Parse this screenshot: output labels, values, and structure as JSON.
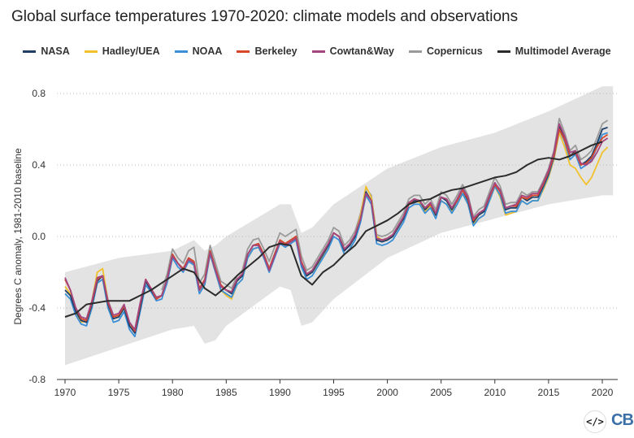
{
  "chart_data": {
    "type": "line",
    "title": "Global surface temperatures 1970-2020: climate models and observations",
    "ylabel": "Degrees C anomaly, 1981-2010 baseline",
    "xlim": [
      1969.5,
      2021.5
    ],
    "ylim": [
      -0.8,
      0.85
    ],
    "xticks": [
      "1970",
      "1975",
      "1980",
      "1985",
      "1990",
      "1995",
      "2000",
      "2005",
      "2010",
      "2015",
      "2020"
    ],
    "yticks": [
      "0.8",
      "0.4",
      "0.0",
      "-0.4",
      "-0.8"
    ],
    "grid": "horizontal-dotted",
    "legend": "top",
    "obs_x_start": 1970,
    "obs_x_step": 0.5,
    "series": [
      {
        "name": "NASA",
        "color": "#1f3f66",
        "values": [
          -0.3,
          -0.33,
          -0.42,
          -0.47,
          -0.48,
          -0.38,
          -0.25,
          -0.22,
          -0.38,
          -0.46,
          -0.45,
          -0.4,
          -0.5,
          -0.54,
          -0.4,
          -0.25,
          -0.3,
          -0.35,
          -0.33,
          -0.24,
          -0.1,
          -0.15,
          -0.18,
          -0.12,
          -0.14,
          -0.3,
          -0.25,
          -0.08,
          -0.18,
          -0.28,
          -0.3,
          -0.32,
          -0.25,
          -0.22,
          -0.1,
          -0.05,
          -0.04,
          -0.1,
          -0.18,
          -0.1,
          -0.02,
          -0.04,
          -0.02,
          0.0,
          -0.15,
          -0.22,
          -0.2,
          -0.15,
          -0.1,
          -0.05,
          0.02,
          0.0,
          -0.08,
          -0.05,
          0.0,
          0.1,
          0.25,
          0.2,
          -0.02,
          -0.03,
          -0.02,
          0.0,
          0.05,
          0.1,
          0.18,
          0.2,
          0.2,
          0.15,
          0.18,
          0.12,
          0.22,
          0.2,
          0.15,
          0.2,
          0.26,
          0.2,
          0.08,
          0.12,
          0.14,
          0.22,
          0.3,
          0.25,
          0.15,
          0.16,
          0.16,
          0.22,
          0.2,
          0.22,
          0.22,
          0.28,
          0.35,
          0.45,
          0.62,
          0.55,
          0.45,
          0.48,
          0.4,
          0.42,
          0.45,
          0.52,
          0.6,
          0.61
        ]
      },
      {
        "name": "Hadley/UEA",
        "color": "#f2c12e",
        "values": [
          -0.28,
          -0.32,
          -0.42,
          -0.48,
          -0.47,
          -0.36,
          -0.2,
          -0.18,
          -0.36,
          -0.45,
          -0.44,
          -0.4,
          -0.5,
          -0.52,
          -0.39,
          -0.24,
          -0.29,
          -0.34,
          -0.33,
          -0.24,
          -0.11,
          -0.15,
          -0.18,
          -0.13,
          -0.16,
          -0.3,
          -0.27,
          -0.1,
          -0.2,
          -0.3,
          -0.33,
          -0.35,
          -0.27,
          -0.24,
          -0.12,
          -0.07,
          -0.06,
          -0.12,
          -0.19,
          -0.11,
          -0.03,
          -0.05,
          -0.03,
          -0.01,
          -0.16,
          -0.22,
          -0.2,
          -0.16,
          -0.11,
          -0.05,
          0.02,
          0.0,
          -0.07,
          -0.05,
          0.0,
          0.12,
          0.28,
          0.22,
          0.0,
          -0.02,
          -0.02,
          0.0,
          0.05,
          0.1,
          0.18,
          0.2,
          0.19,
          0.14,
          0.17,
          0.11,
          0.2,
          0.18,
          0.14,
          0.18,
          0.24,
          0.18,
          0.07,
          0.1,
          0.12,
          0.2,
          0.28,
          0.22,
          0.12,
          0.13,
          0.14,
          0.2,
          0.18,
          0.2,
          0.2,
          0.26,
          0.33,
          0.43,
          0.58,
          0.5,
          0.4,
          0.38,
          0.33,
          0.29,
          0.33,
          0.4,
          0.47,
          0.5
        ]
      },
      {
        "name": "NOAA",
        "color": "#3a8fd6",
        "values": [
          -0.32,
          -0.35,
          -0.44,
          -0.49,
          -0.5,
          -0.4,
          -0.26,
          -0.24,
          -0.4,
          -0.48,
          -0.47,
          -0.42,
          -0.52,
          -0.56,
          -0.42,
          -0.27,
          -0.31,
          -0.36,
          -0.35,
          -0.26,
          -0.12,
          -0.17,
          -0.2,
          -0.14,
          -0.16,
          -0.32,
          -0.27,
          -0.1,
          -0.2,
          -0.3,
          -0.32,
          -0.34,
          -0.27,
          -0.24,
          -0.12,
          -0.07,
          -0.06,
          -0.12,
          -0.2,
          -0.12,
          -0.04,
          -0.06,
          -0.04,
          -0.02,
          -0.17,
          -0.24,
          -0.22,
          -0.17,
          -0.12,
          -0.07,
          0.0,
          -0.02,
          -0.1,
          -0.07,
          -0.02,
          0.08,
          0.23,
          0.18,
          -0.04,
          -0.05,
          -0.04,
          -0.02,
          0.03,
          0.08,
          0.16,
          0.18,
          0.18,
          0.13,
          0.16,
          0.1,
          0.2,
          0.18,
          0.13,
          0.18,
          0.24,
          0.18,
          0.06,
          0.1,
          0.12,
          0.2,
          0.28,
          0.23,
          0.13,
          0.14,
          0.14,
          0.2,
          0.18,
          0.2,
          0.2,
          0.27,
          0.34,
          0.44,
          0.6,
          0.53,
          0.43,
          0.46,
          0.38,
          0.4,
          0.43,
          0.5,
          0.57,
          0.58
        ]
      },
      {
        "name": "Berkeley",
        "color": "#d9472b",
        "values": [
          -0.24,
          -0.3,
          -0.4,
          -0.46,
          -0.47,
          -0.37,
          -0.24,
          -0.22,
          -0.37,
          -0.45,
          -0.44,
          -0.39,
          -0.48,
          -0.53,
          -0.38,
          -0.24,
          -0.29,
          -0.35,
          -0.33,
          -0.24,
          -0.1,
          -0.15,
          -0.18,
          -0.12,
          -0.14,
          -0.29,
          -0.24,
          -0.08,
          -0.18,
          -0.27,
          -0.3,
          -0.31,
          -0.24,
          -0.21,
          -0.1,
          -0.05,
          -0.04,
          -0.1,
          -0.18,
          -0.1,
          -0.02,
          -0.04,
          -0.02,
          0.0,
          -0.14,
          -0.21,
          -0.19,
          -0.14,
          -0.09,
          -0.04,
          0.02,
          0.0,
          -0.07,
          -0.04,
          0.01,
          0.1,
          0.24,
          0.2,
          -0.01,
          -0.02,
          -0.01,
          0.01,
          0.06,
          0.11,
          0.18,
          0.21,
          0.2,
          0.16,
          0.18,
          0.13,
          0.22,
          0.21,
          0.16,
          0.2,
          0.26,
          0.21,
          0.09,
          0.13,
          0.15,
          0.22,
          0.29,
          0.25,
          0.16,
          0.17,
          0.17,
          0.22,
          0.21,
          0.23,
          0.23,
          0.29,
          0.36,
          0.45,
          0.6,
          0.54,
          0.45,
          0.47,
          0.4,
          0.41,
          0.44,
          0.5,
          0.55,
          0.57
        ]
      },
      {
        "name": "Cowtan&Way",
        "color": "#a3457e",
        "values": [
          -0.23,
          -0.3,
          -0.4,
          -0.45,
          -0.46,
          -0.36,
          -0.23,
          -0.22,
          -0.36,
          -0.44,
          -0.43,
          -0.38,
          -0.48,
          -0.52,
          -0.37,
          -0.24,
          -0.29,
          -0.34,
          -0.33,
          -0.24,
          -0.11,
          -0.15,
          -0.19,
          -0.13,
          -0.15,
          -0.3,
          -0.25,
          -0.09,
          -0.19,
          -0.28,
          -0.3,
          -0.31,
          -0.24,
          -0.21,
          -0.1,
          -0.05,
          -0.05,
          -0.11,
          -0.19,
          -0.11,
          -0.03,
          -0.05,
          -0.03,
          -0.01,
          -0.15,
          -0.21,
          -0.19,
          -0.14,
          -0.09,
          -0.04,
          0.02,
          0.0,
          -0.07,
          -0.04,
          0.01,
          0.1,
          0.24,
          0.2,
          -0.01,
          -0.02,
          -0.01,
          0.01,
          0.06,
          0.11,
          0.19,
          0.21,
          0.2,
          0.16,
          0.19,
          0.13,
          0.22,
          0.21,
          0.16,
          0.21,
          0.27,
          0.22,
          0.1,
          0.13,
          0.15,
          0.23,
          0.3,
          0.26,
          0.16,
          0.17,
          0.18,
          0.23,
          0.22,
          0.24,
          0.24,
          0.3,
          0.37,
          0.47,
          0.63,
          0.56,
          0.47,
          0.48,
          0.41,
          0.4,
          0.42,
          0.47,
          0.53,
          0.55
        ]
      },
      {
        "name": "Copernicus",
        "color": "#9a9a9a",
        "start": 1979,
        "values": [
          -0.3,
          -0.21,
          -0.07,
          -0.12,
          -0.15,
          -0.08,
          -0.06,
          -0.26,
          -0.21,
          -0.05,
          -0.15,
          -0.25,
          -0.27,
          -0.29,
          -0.22,
          -0.19,
          -0.07,
          -0.02,
          -0.01,
          -0.07,
          -0.14,
          -0.06,
          0.02,
          0.0,
          0.02,
          0.04,
          -0.11,
          -0.19,
          -0.17,
          -0.12,
          -0.07,
          -0.02,
          0.05,
          0.03,
          -0.05,
          -0.02,
          0.03,
          0.13,
          0.27,
          0.23,
          0.01,
          0.0,
          0.01,
          0.03,
          0.08,
          0.13,
          0.21,
          0.23,
          0.23,
          0.18,
          0.21,
          0.15,
          0.25,
          0.23,
          0.18,
          0.23,
          0.29,
          0.23,
          0.11,
          0.15,
          0.17,
          0.25,
          0.33,
          0.28,
          0.18,
          0.19,
          0.19,
          0.25,
          0.23,
          0.25,
          0.25,
          0.31,
          0.38,
          0.48,
          0.66,
          0.58,
          0.48,
          0.51,
          0.43,
          0.45,
          0.48,
          0.55,
          0.63,
          0.65
        ]
      },
      {
        "name": "Multimodel Average",
        "color": "#2b2b2b",
        "x_start": 1970,
        "x_step": 1,
        "values": [
          -0.45,
          -0.43,
          -0.38,
          -0.37,
          -0.36,
          -0.36,
          -0.36,
          -0.33,
          -0.3,
          -0.26,
          -0.22,
          -0.18,
          -0.2,
          -0.29,
          -0.33,
          -0.28,
          -0.22,
          -0.17,
          -0.12,
          -0.06,
          -0.04,
          -0.05,
          -0.22,
          -0.27,
          -0.2,
          -0.16,
          -0.1,
          -0.05,
          0.03,
          0.06,
          0.09,
          0.13,
          0.18,
          0.2,
          0.21,
          0.24,
          0.26,
          0.27,
          0.29,
          0.31,
          0.33,
          0.34,
          0.36,
          0.4,
          0.43,
          0.44,
          0.43,
          0.45,
          0.48,
          0.51,
          0.53
        ]
      }
    ],
    "model_range": {
      "color": "#e3e3e3",
      "x": [
        1970,
        1975,
        1980,
        1982,
        1983,
        1984,
        1985,
        1990,
        1991,
        1992,
        1993,
        1995,
        2000,
        2005,
        2010,
        2015,
        2020,
        2021
      ],
      "lower": [
        -0.72,
        -0.62,
        -0.52,
        -0.5,
        -0.6,
        -0.58,
        -0.5,
        -0.28,
        -0.3,
        -0.5,
        -0.48,
        -0.35,
        -0.12,
        0.02,
        0.1,
        0.18,
        0.23,
        0.23
      ],
      "upper": [
        -0.2,
        -0.12,
        -0.08,
        -0.02,
        -0.08,
        -0.05,
        0.0,
        0.18,
        0.18,
        0.02,
        0.05,
        0.18,
        0.38,
        0.5,
        0.58,
        0.7,
        0.84,
        0.84
      ]
    }
  },
  "footer": {
    "embed_label": "</>",
    "logo": "CB"
  }
}
